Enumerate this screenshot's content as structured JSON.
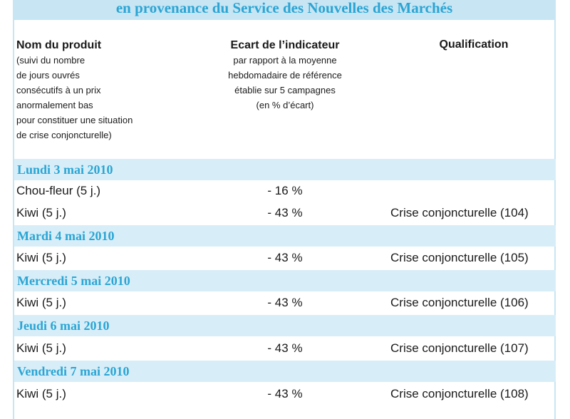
{
  "title": "en provenance du Service des Nouvelles des Marchés",
  "headers": {
    "product_title": "Nom du produit",
    "product_sub": [
      "(suivi du nombre",
      "de jours ouvrés",
      "consécutifs à un prix",
      "anormalement bas",
      "pour constituer une situation",
      "de crise conjoncturelle)"
    ],
    "indicator_title": "Ecart de l’indicateur",
    "indicator_sub": [
      "par rapport à la moyenne",
      "hebdomadaire de référence",
      "établie sur 5 campagnes",
      "(en % d’écart)"
    ],
    "qualification_title": "Qualification"
  },
  "days": [
    {
      "date": "Lundi 3 mai 2010",
      "rows": [
        {
          "product": "Chou-fleur (5 j.)",
          "gap": "- 16 %",
          "qualification": ""
        },
        {
          "product": "Kiwi (5 j.)",
          "gap": "- 43 %",
          "qualification": "Crise conjoncturelle (104)"
        }
      ]
    },
    {
      "date": "Mardi 4 mai 2010",
      "rows": [
        {
          "product": "Kiwi (5 j.)",
          "gap": "- 43 %",
          "qualification": "Crise conjoncturelle (105)"
        }
      ]
    },
    {
      "date": "Mercredi 5 mai 2010",
      "rows": [
        {
          "product": "Kiwi (5 j.)",
          "gap": "- 43 %",
          "qualification": "Crise conjoncturelle (106)"
        }
      ]
    },
    {
      "date": "Jeudi 6 mai 2010",
      "rows": [
        {
          "product": "Kiwi (5 j.)",
          "gap": "- 43 %",
          "qualification": "Crise conjoncturelle (107)"
        }
      ]
    },
    {
      "date": "Vendredi 7 mai 2010",
      "rows": [
        {
          "product": "Kiwi (5 j.)",
          "gap": "- 43 %",
          "qualification": "Crise conjoncturelle (108)"
        }
      ]
    }
  ]
}
